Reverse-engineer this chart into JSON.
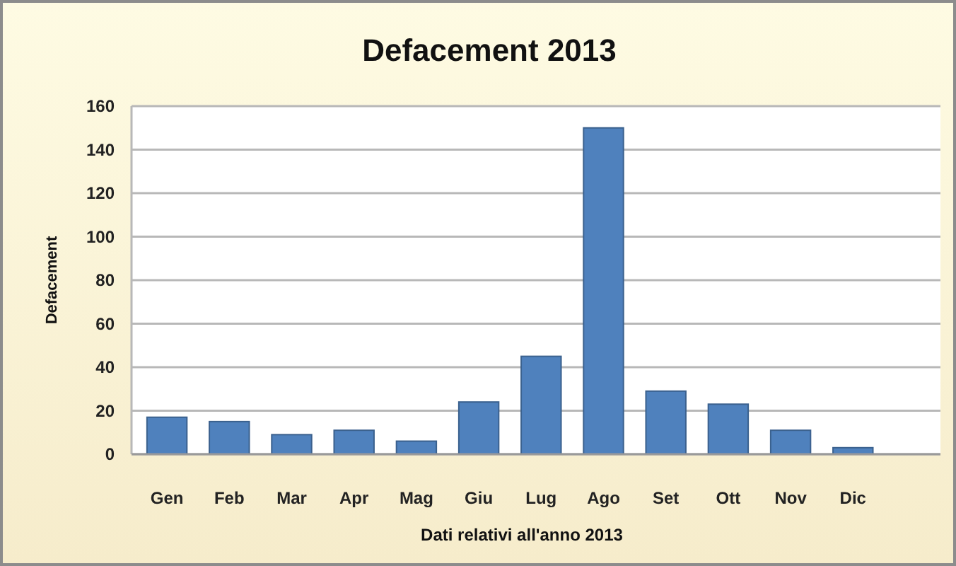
{
  "chart_data": {
    "type": "bar",
    "title": "Defacement 2013",
    "ylabel": "Defacement",
    "xlabel": "Dati relativi all'anno 2013",
    "categories": [
      "Gen",
      "Feb",
      "Mar",
      "Apr",
      "Mag",
      "Giu",
      "Lug",
      "Ago",
      "Set",
      "Ott",
      "Nov",
      "Dic"
    ],
    "values": [
      17,
      15,
      9,
      11,
      6,
      24,
      45,
      150,
      29,
      23,
      11,
      3
    ],
    "color": "#4f81bd",
    "ylim": [
      0,
      160
    ],
    "yticks": [
      0,
      20,
      40,
      60,
      80,
      100,
      120,
      140,
      160
    ],
    "grid": "y"
  }
}
